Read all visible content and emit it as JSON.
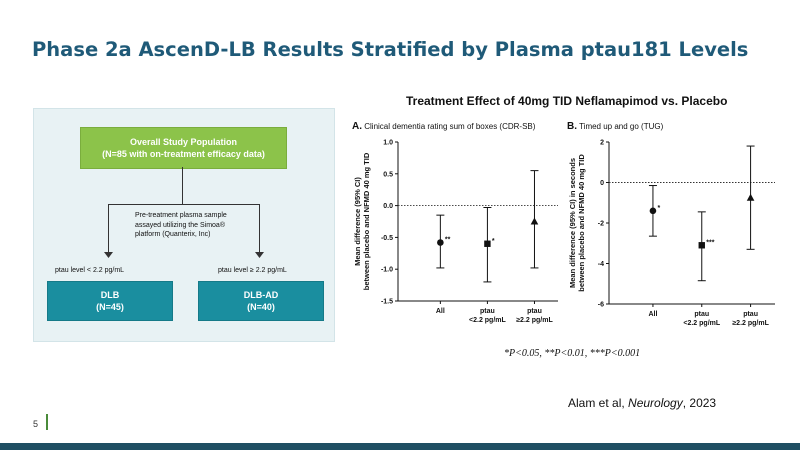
{
  "slide": {
    "title": "Phase 2a AscenD-LB Results Stratified by Plasma ptau181 Levels",
    "page_number": "5",
    "citation_prefix": "Alam et al, ",
    "citation_journal": "Neurology",
    "citation_suffix": ", 2023",
    "significance_note": "*P<0.05, **P<0.01, ***P<0.001"
  },
  "flowchart": {
    "top_box_line1": "Overall Study Population",
    "top_box_line2": "(N=85 with on-treatment efficacy data)",
    "middle_text_line1": "Pre-treatment plasma sample",
    "middle_text_line2": "assayed utilizing the  Simoa®",
    "middle_text_line3": "platform (Quanterix, Inc)",
    "left_label": "ptau level < 2.2 pg/mL",
    "right_label": "ptau level ≥ 2.2 pg/mL",
    "left_box_line1": "DLB",
    "left_box_line2": "(N=45)",
    "right_box_line1": "DLB-AD",
    "right_box_line2": "(N=40)",
    "colors": {
      "top_box": "#8cc34a",
      "bottom_boxes": "#1a8e9f",
      "panel": "#e8f2f4"
    }
  },
  "chart_header": "Treatment Effect of 40mg TID Neflamapimod vs. Placebo",
  "chart_data": [
    {
      "type": "scatter",
      "panel_letter": "A.",
      "title": "Clinical dementia rating sum of boxes (CDR-SB)",
      "ylabel_line1": "Mean difference (95% CI)",
      "ylabel_line2": "between placebo and NFMD 40 mg TID",
      "ylim": [
        -1.5,
        1.0
      ],
      "yticks": [
        "1.0",
        "0.5",
        "0.0",
        "-0.5",
        "-1.0",
        "-1.5"
      ],
      "reference_line": 0,
      "categories": [
        {
          "line1": "All",
          "line2": ""
        },
        {
          "line1": "ptau",
          "line2": "<2.2 pg/mL"
        },
        {
          "line1": "ptau",
          "line2": "≥2.2 pg/mL"
        }
      ],
      "points": [
        {
          "mean": -0.58,
          "lo": -0.98,
          "hi": -0.15,
          "marker": "circle",
          "sig": "**"
        },
        {
          "mean": -0.6,
          "lo": -1.2,
          "hi": -0.03,
          "marker": "square",
          "sig": "*"
        },
        {
          "mean": -0.25,
          "lo": -0.98,
          "hi": 0.55,
          "marker": "triangle",
          "sig": ""
        }
      ]
    },
    {
      "type": "scatter",
      "panel_letter": "B.",
      "title": "Timed up and go (TUG)",
      "ylabel_line1": "Mean difference (95% CI) in seconds",
      "ylabel_line2": "between placebo and NFMD 40 mg TID",
      "ylim": [
        -6,
        2
      ],
      "yticks": [
        "2",
        "0",
        "-2",
        "-4",
        "-6"
      ],
      "reference_line": 0,
      "categories": [
        {
          "line1": "All",
          "line2": ""
        },
        {
          "line1": "ptau",
          "line2": "<2.2 pg/mL"
        },
        {
          "line1": "ptau",
          "line2": "≥2.2 pg/mL"
        }
      ],
      "points": [
        {
          "mean": -1.4,
          "lo": -2.65,
          "hi": -0.15,
          "marker": "circle",
          "sig": "*"
        },
        {
          "mean": -3.1,
          "lo": -4.85,
          "hi": -1.45,
          "marker": "square",
          "sig": "***"
        },
        {
          "mean": -0.75,
          "lo": -3.3,
          "hi": 1.8,
          "marker": "triangle",
          "sig": ""
        }
      ]
    }
  ]
}
